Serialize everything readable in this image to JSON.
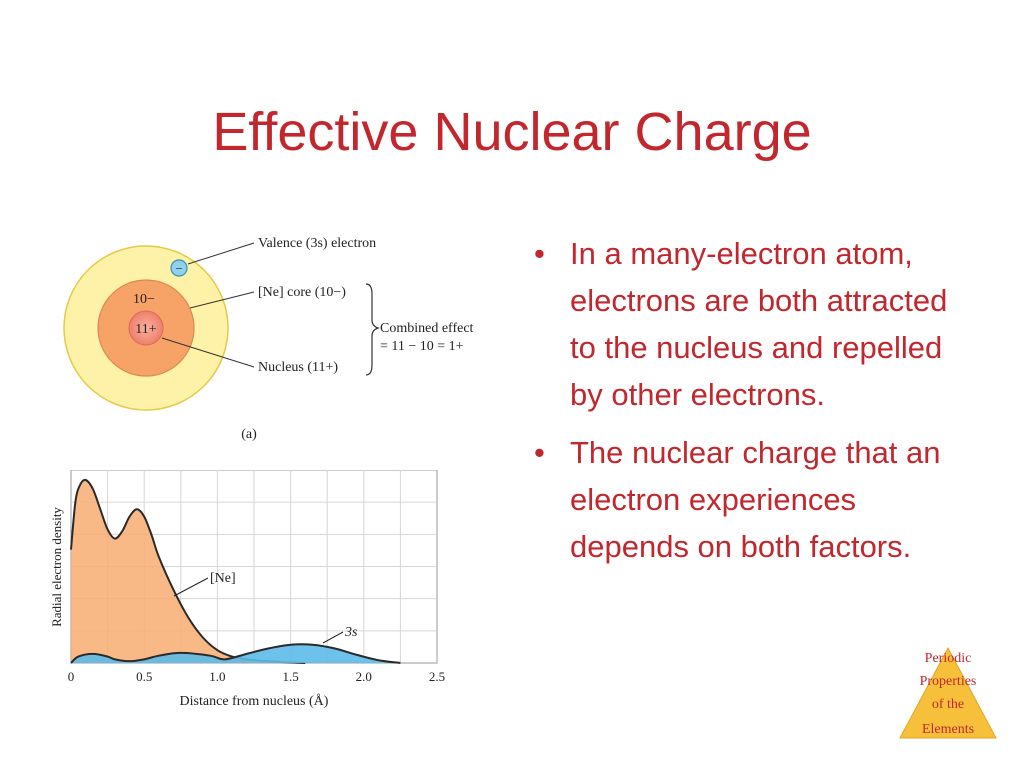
{
  "slide": {
    "title": "Effective Nuclear Charge",
    "bullets": [
      "In a many-electron atom, electrons are both attracted to the nucleus and repelled by other electrons.",
      "The nuclear charge that an electron experiences depends on both factors."
    ]
  },
  "atom_diagram": {
    "valence_label": "Valence (3s) electron",
    "core_label": "[Ne] core (10−)",
    "nucleus_label": "Nucleus (11+)",
    "combined_line1": "Combined effect",
    "combined_line2": "= 11 − 10 = 1+",
    "core_charge": "10−",
    "nucleus_charge": "11+",
    "electron_sign": "−",
    "caption": "(a)"
  },
  "chart_data": {
    "type": "area",
    "xlabel": "Distance from nucleus (Å)",
    "ylabel": "Radial electron density",
    "xlim": [
      0,
      2.5
    ],
    "xticks": [
      "0",
      "0.5",
      "1.0",
      "1.5",
      "2.0",
      "2.5"
    ],
    "series": [
      {
        "name": "[Ne]",
        "color": "#f7ad72",
        "x": [
          0,
          0.03,
          0.06,
          0.1,
          0.15,
          0.2,
          0.25,
          0.3,
          0.35,
          0.4,
          0.45,
          0.5,
          0.55,
          0.6,
          0.7,
          0.8,
          0.9,
          1.0,
          1.1,
          1.2,
          1.3,
          1.45,
          1.6
        ],
        "y": [
          0.62,
          0.88,
          0.97,
          1.0,
          0.95,
          0.84,
          0.73,
          0.68,
          0.72,
          0.8,
          0.84,
          0.8,
          0.7,
          0.58,
          0.4,
          0.25,
          0.14,
          0.07,
          0.035,
          0.02,
          0.012,
          0.005,
          0.0
        ]
      },
      {
        "name": "3s",
        "color": "#5cbbe9",
        "x": [
          0,
          0.05,
          0.15,
          0.25,
          0.3,
          0.4,
          0.5,
          0.6,
          0.75,
          0.95,
          1.05,
          1.2,
          1.35,
          1.5,
          1.65,
          1.8,
          1.95,
          2.1,
          2.25
        ],
        "y": [
          0.0,
          0.035,
          0.05,
          0.035,
          0.02,
          0.01,
          0.02,
          0.04,
          0.055,
          0.04,
          0.02,
          0.05,
          0.08,
          0.1,
          0.1,
          0.08,
          0.045,
          0.015,
          0.0
        ]
      }
    ]
  },
  "badge": {
    "lines": [
      "Periodic",
      "Properties",
      "of the",
      "Elements"
    ],
    "color": "#f7c03a"
  }
}
